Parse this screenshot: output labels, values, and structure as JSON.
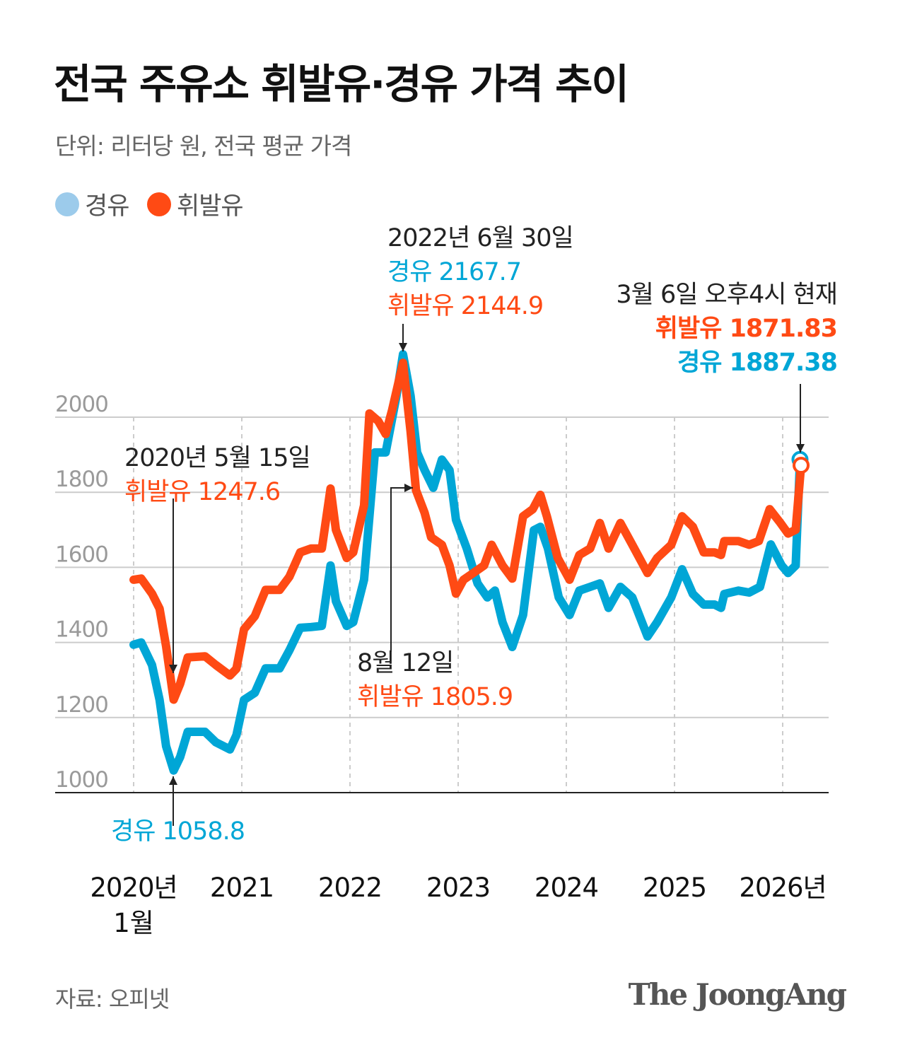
{
  "title": "전국 주유소 휘발유·경유 가격 추이",
  "subtitle": "단위: 리터당 원, 전국 평균 가격",
  "legend": [
    {
      "label": "경유",
      "color": "#9ccbeb"
    },
    {
      "label": "휘발유",
      "color": "#ff4a14"
    }
  ],
  "annotations": {
    "peak": {
      "date": "2022년 6월 30일",
      "diesel": "경유 2167.7",
      "gasoline": "휘발유 2144.9"
    },
    "current": {
      "date": "3월 6일 오후4시 현재",
      "gasoline": "휘발유 1871.83",
      "diesel": "경유 1887.38"
    },
    "low_gas": {
      "date": "2020년 5월 15일",
      "gasoline": "휘발유 1247.6"
    },
    "low_diesel": {
      "diesel": "경유 1058.8"
    },
    "aug": {
      "date": "8월 12일",
      "gasoline": "휘발유 1805.9"
    }
  },
  "source": "자료: 오피넷",
  "logo": "The JoongAng",
  "chart_data": {
    "type": "line",
    "title": "전국 주유소 휘발유·경유 가격 추이",
    "ylabel": "",
    "xlabel": "",
    "xlim": [
      2020.0,
      2026.45
    ],
    "ylim": [
      1000,
      2000
    ],
    "yticks": [
      "1000",
      "1200",
      "1400",
      "1600",
      "1800",
      "2000"
    ],
    "xticks": [
      {
        "value": 2020,
        "label": "2020년",
        "sub": "1월"
      },
      {
        "value": 2021,
        "label": "2021"
      },
      {
        "value": 2022,
        "label": "2022"
      },
      {
        "value": 2023,
        "label": "2023"
      },
      {
        "value": 2024,
        "label": "2024"
      },
      {
        "value": 2025,
        "label": "2025"
      },
      {
        "value": 2026,
        "label": "2026년"
      }
    ],
    "grid": true,
    "series": [
      {
        "name": "경유",
        "color": "#00a6d6",
        "points": [
          [
            2020.0,
            1394
          ],
          [
            2020.07,
            1400
          ],
          [
            2020.17,
            1340
          ],
          [
            2020.24,
            1247
          ],
          [
            2020.3,
            1124
          ],
          [
            2020.37,
            1059
          ],
          [
            2020.43,
            1095
          ],
          [
            2020.5,
            1162
          ],
          [
            2020.66,
            1162
          ],
          [
            2020.76,
            1134
          ],
          [
            2020.89,
            1115
          ],
          [
            2020.95,
            1153
          ],
          [
            2021.02,
            1247
          ],
          [
            2021.12,
            1266
          ],
          [
            2021.22,
            1331
          ],
          [
            2021.35,
            1331
          ],
          [
            2021.44,
            1379
          ],
          [
            2021.54,
            1439
          ],
          [
            2021.64,
            1441
          ],
          [
            2021.74,
            1444
          ],
          [
            2021.82,
            1605
          ],
          [
            2021.87,
            1510
          ],
          [
            2021.97,
            1444
          ],
          [
            2022.03,
            1454
          ],
          [
            2022.13,
            1567
          ],
          [
            2022.23,
            1906
          ],
          [
            2022.33,
            1906
          ],
          [
            2022.43,
            2057
          ],
          [
            2022.49,
            2167.7
          ],
          [
            2022.56,
            2057
          ],
          [
            2022.62,
            1906
          ],
          [
            2022.69,
            1859
          ],
          [
            2022.77,
            1812
          ],
          [
            2022.85,
            1887
          ],
          [
            2022.92,
            1859
          ],
          [
            2022.98,
            1727
          ],
          [
            2023.08,
            1650
          ],
          [
            2023.18,
            1557
          ],
          [
            2023.27,
            1520
          ],
          [
            2023.34,
            1538
          ],
          [
            2023.41,
            1454
          ],
          [
            2023.5,
            1388
          ],
          [
            2023.6,
            1473
          ],
          [
            2023.7,
            1699
          ],
          [
            2023.76,
            1708
          ],
          [
            2023.83,
            1650
          ],
          [
            2023.93,
            1520
          ],
          [
            2024.03,
            1473
          ],
          [
            2024.12,
            1538
          ],
          [
            2024.22,
            1548
          ],
          [
            2024.31,
            1557
          ],
          [
            2024.39,
            1492
          ],
          [
            2024.5,
            1548
          ],
          [
            2024.61,
            1520
          ],
          [
            2024.75,
            1416
          ],
          [
            2024.84,
            1454
          ],
          [
            2024.97,
            1520
          ],
          [
            2025.07,
            1595
          ],
          [
            2025.17,
            1529
          ],
          [
            2025.27,
            1501
          ],
          [
            2025.37,
            1501
          ],
          [
            2025.43,
            1492
          ],
          [
            2025.46,
            1529
          ],
          [
            2025.59,
            1538
          ],
          [
            2025.69,
            1533
          ],
          [
            2025.79,
            1548
          ],
          [
            2025.89,
            1661
          ],
          [
            2025.99,
            1605
          ],
          [
            2026.05,
            1585
          ],
          [
            2026.12,
            1605
          ],
          [
            2026.16,
            1887.38
          ]
        ]
      },
      {
        "name": "휘발유",
        "color": "#ff4a14",
        "points": [
          [
            2020.0,
            1567
          ],
          [
            2020.07,
            1570
          ],
          [
            2020.17,
            1530
          ],
          [
            2020.24,
            1490
          ],
          [
            2020.3,
            1390
          ],
          [
            2020.37,
            1247.6
          ],
          [
            2020.43,
            1290
          ],
          [
            2020.5,
            1360
          ],
          [
            2020.66,
            1363
          ],
          [
            2020.76,
            1340
          ],
          [
            2020.89,
            1312
          ],
          [
            2020.95,
            1330
          ],
          [
            2021.02,
            1435
          ],
          [
            2021.12,
            1470
          ],
          [
            2021.22,
            1540
          ],
          [
            2021.35,
            1540
          ],
          [
            2021.44,
            1575
          ],
          [
            2021.54,
            1640
          ],
          [
            2021.64,
            1650
          ],
          [
            2021.74,
            1650
          ],
          [
            2021.82,
            1810
          ],
          [
            2021.87,
            1700
          ],
          [
            2021.97,
            1625
          ],
          [
            2022.03,
            1640
          ],
          [
            2022.13,
            1765
          ],
          [
            2022.18,
            2010
          ],
          [
            2022.26,
            1990
          ],
          [
            2022.33,
            1955
          ],
          [
            2022.39,
            2020
          ],
          [
            2022.49,
            2144.9
          ],
          [
            2022.56,
            1962
          ],
          [
            2022.61,
            1805.9
          ],
          [
            2022.69,
            1745
          ],
          [
            2022.75,
            1680
          ],
          [
            2022.85,
            1660
          ],
          [
            2022.92,
            1605
          ],
          [
            2022.98,
            1530
          ],
          [
            2023.05,
            1567
          ],
          [
            2023.14,
            1585
          ],
          [
            2023.24,
            1605
          ],
          [
            2023.31,
            1660
          ],
          [
            2023.41,
            1605
          ],
          [
            2023.5,
            1570
          ],
          [
            2023.6,
            1736
          ],
          [
            2023.69,
            1755
          ],
          [
            2023.76,
            1793
          ],
          [
            2023.82,
            1736
          ],
          [
            2023.92,
            1625
          ],
          [
            2024.03,
            1567
          ],
          [
            2024.12,
            1633
          ],
          [
            2024.22,
            1650
          ],
          [
            2024.31,
            1718
          ],
          [
            2024.39,
            1650
          ],
          [
            2024.5,
            1718
          ],
          [
            2024.61,
            1660
          ],
          [
            2024.75,
            1585
          ],
          [
            2024.84,
            1625
          ],
          [
            2024.97,
            1660
          ],
          [
            2025.07,
            1736
          ],
          [
            2025.17,
            1708
          ],
          [
            2025.27,
            1640
          ],
          [
            2025.37,
            1640
          ],
          [
            2025.43,
            1633
          ],
          [
            2025.46,
            1670
          ],
          [
            2025.59,
            1670
          ],
          [
            2025.69,
            1660
          ],
          [
            2025.78,
            1670
          ],
          [
            2025.88,
            1755
          ],
          [
            2025.98,
            1718
          ],
          [
            2026.05,
            1690
          ],
          [
            2026.12,
            1700
          ],
          [
            2026.17,
            1871.83
          ]
        ]
      }
    ]
  }
}
